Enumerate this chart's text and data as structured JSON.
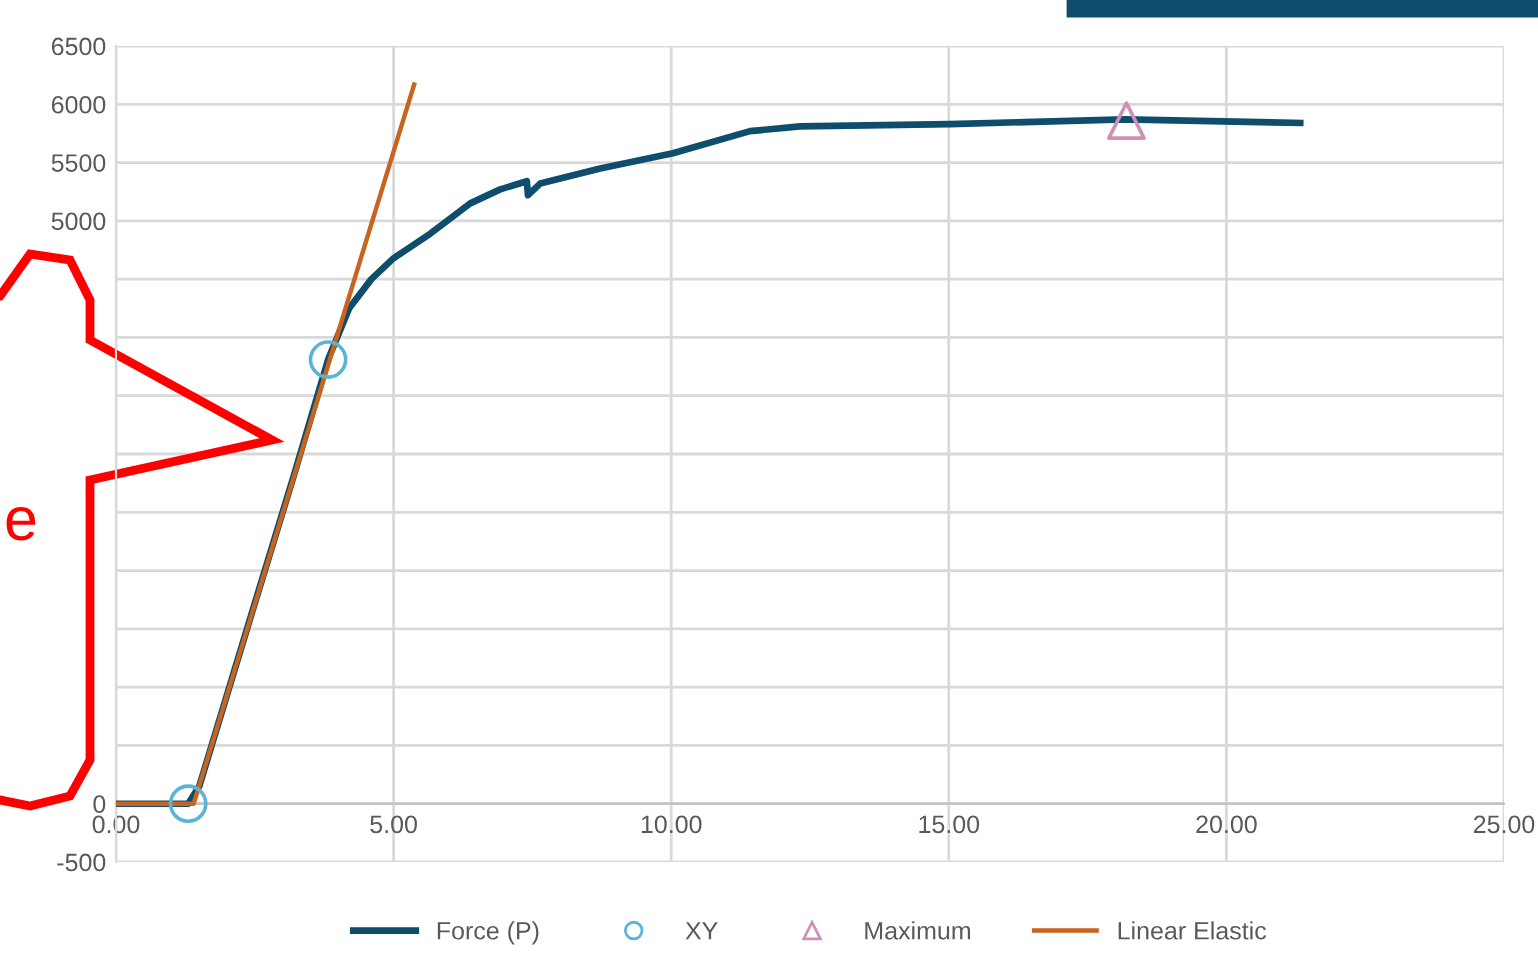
{
  "chart_data": {
    "type": "line",
    "xlim": [
      0,
      25
    ],
    "xticks": [
      {
        "value": 0,
        "label": "0.00"
      },
      {
        "value": 5,
        "label": "5.00"
      },
      {
        "value": 10,
        "label": "10.00"
      },
      {
        "value": 15,
        "label": "15.00"
      },
      {
        "value": 20,
        "label": "20.00"
      },
      {
        "value": 25,
        "label": "25.00"
      }
    ],
    "ylim": [
      -500,
      6500
    ],
    "yticks": [
      -500,
      0,
      {
        "value": 500,
        "label": null
      },
      {
        "value": 1000,
        "label": null
      },
      {
        "value": 1500,
        "label": null
      },
      {
        "value": 2000,
        "label": null
      },
      {
        "value": 2500,
        "label": null
      },
      {
        "value": 3000,
        "label": null
      },
      {
        "value": 3500,
        "label": null
      },
      {
        "value": 4000,
        "label": null
      },
      {
        "value": 4500,
        "label": null
      },
      5000,
      5500,
      6000,
      6500
    ],
    "grid": true,
    "legend": "bottom",
    "annotations": [
      "e"
    ],
    "series": [
      {
        "name": "Force (P)",
        "type": "line",
        "color": "#0e4d6b",
        "marker": "none",
        "x": [
          0,
          1.3,
          1.5,
          2.5,
          3.2,
          3.82,
          4.2,
          4.6,
          5.0,
          5.66,
          6.38,
          6.92,
          7.4,
          7.42,
          7.64,
          8.72,
          10.03,
          11.42,
          12.32,
          15.02,
          18.17,
          21.33
        ],
        "values": [
          0,
          0,
          150,
          1720,
          2810,
          3810,
          4250,
          4500,
          4680,
          4890,
          5150,
          5270,
          5340,
          5220,
          5320,
          5450,
          5580,
          5770,
          5810,
          5830,
          5870,
          5840
        ]
      },
      {
        "name": "XY",
        "type": "scatter",
        "color": "#5bb4d6",
        "marker": "circle",
        "x": [
          1.3,
          3.82
        ],
        "values": [
          0,
          3810
        ]
      },
      {
        "name": "Maximum",
        "type": "scatter",
        "color": "#d08fb5",
        "marker": "triangle",
        "x": [
          18.2
        ],
        "values": [
          5860
        ]
      },
      {
        "name": "Linear Elastic",
        "type": "line",
        "color": "#c8641e",
        "marker": "none",
        "x": [
          0,
          1.4,
          5.37
        ],
        "values": [
          0,
          0,
          6170
        ]
      }
    ]
  }
}
